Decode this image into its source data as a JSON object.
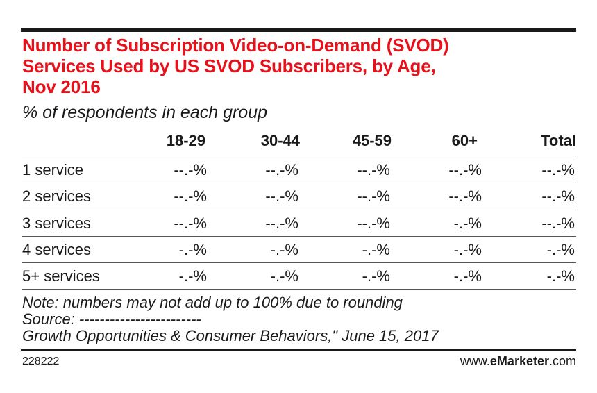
{
  "chart_data": {
    "type": "table",
    "title": "Number of Subscription Video-on-Demand (SVOD) Services Used by US SVOD Subscribers, by Age, Nov 2016",
    "subtitle": "% of respondents in each group",
    "columns": [
      "",
      "18-29",
      "30-44",
      "45-59",
      "60+",
      "Total"
    ],
    "rows": [
      {
        "label": "1 service",
        "values": [
          "--.-%",
          "--.-%",
          "--.-%",
          "--.-%",
          "--.-%"
        ]
      },
      {
        "label": "2 services",
        "values": [
          "--.-%",
          "--.-%",
          "--.-%",
          "--.-%",
          "--.-%"
        ]
      },
      {
        "label": "3 services",
        "values": [
          "--.-%",
          "--.-%",
          "--.-%",
          "-.-%",
          "--.-%"
        ]
      },
      {
        "label": "4 services",
        "values": [
          "-.-%",
          "-.-%",
          "-.-%",
          "-.-%",
          "-.-%"
        ]
      },
      {
        "label": "5+ services",
        "values": [
          "-.-%",
          "-.-%",
          "-.-%",
          "-.-%",
          "-.-%"
        ]
      }
    ]
  },
  "header": {
    "title_lines": [
      "Number of Subscription Video-on-Demand (SVOD)",
      "Services Used by US SVOD Subscribers, by Age,",
      "Nov 2016"
    ]
  },
  "footer": {
    "note": "Note: numbers may not add up to 100% due to rounding",
    "source": "Source: ------------------------",
    "source_detail": "Growth Opportunities & Consumer Behaviors,\" June 15, 2017",
    "chart_id": "228222",
    "brand_prefix": "www.",
    "brand_bold": "eMarketer",
    "brand_suffix": ".com"
  },
  "colors": {
    "title": "#e8111a",
    "text": "#1a1a1a",
    "rule": "#555555"
  }
}
